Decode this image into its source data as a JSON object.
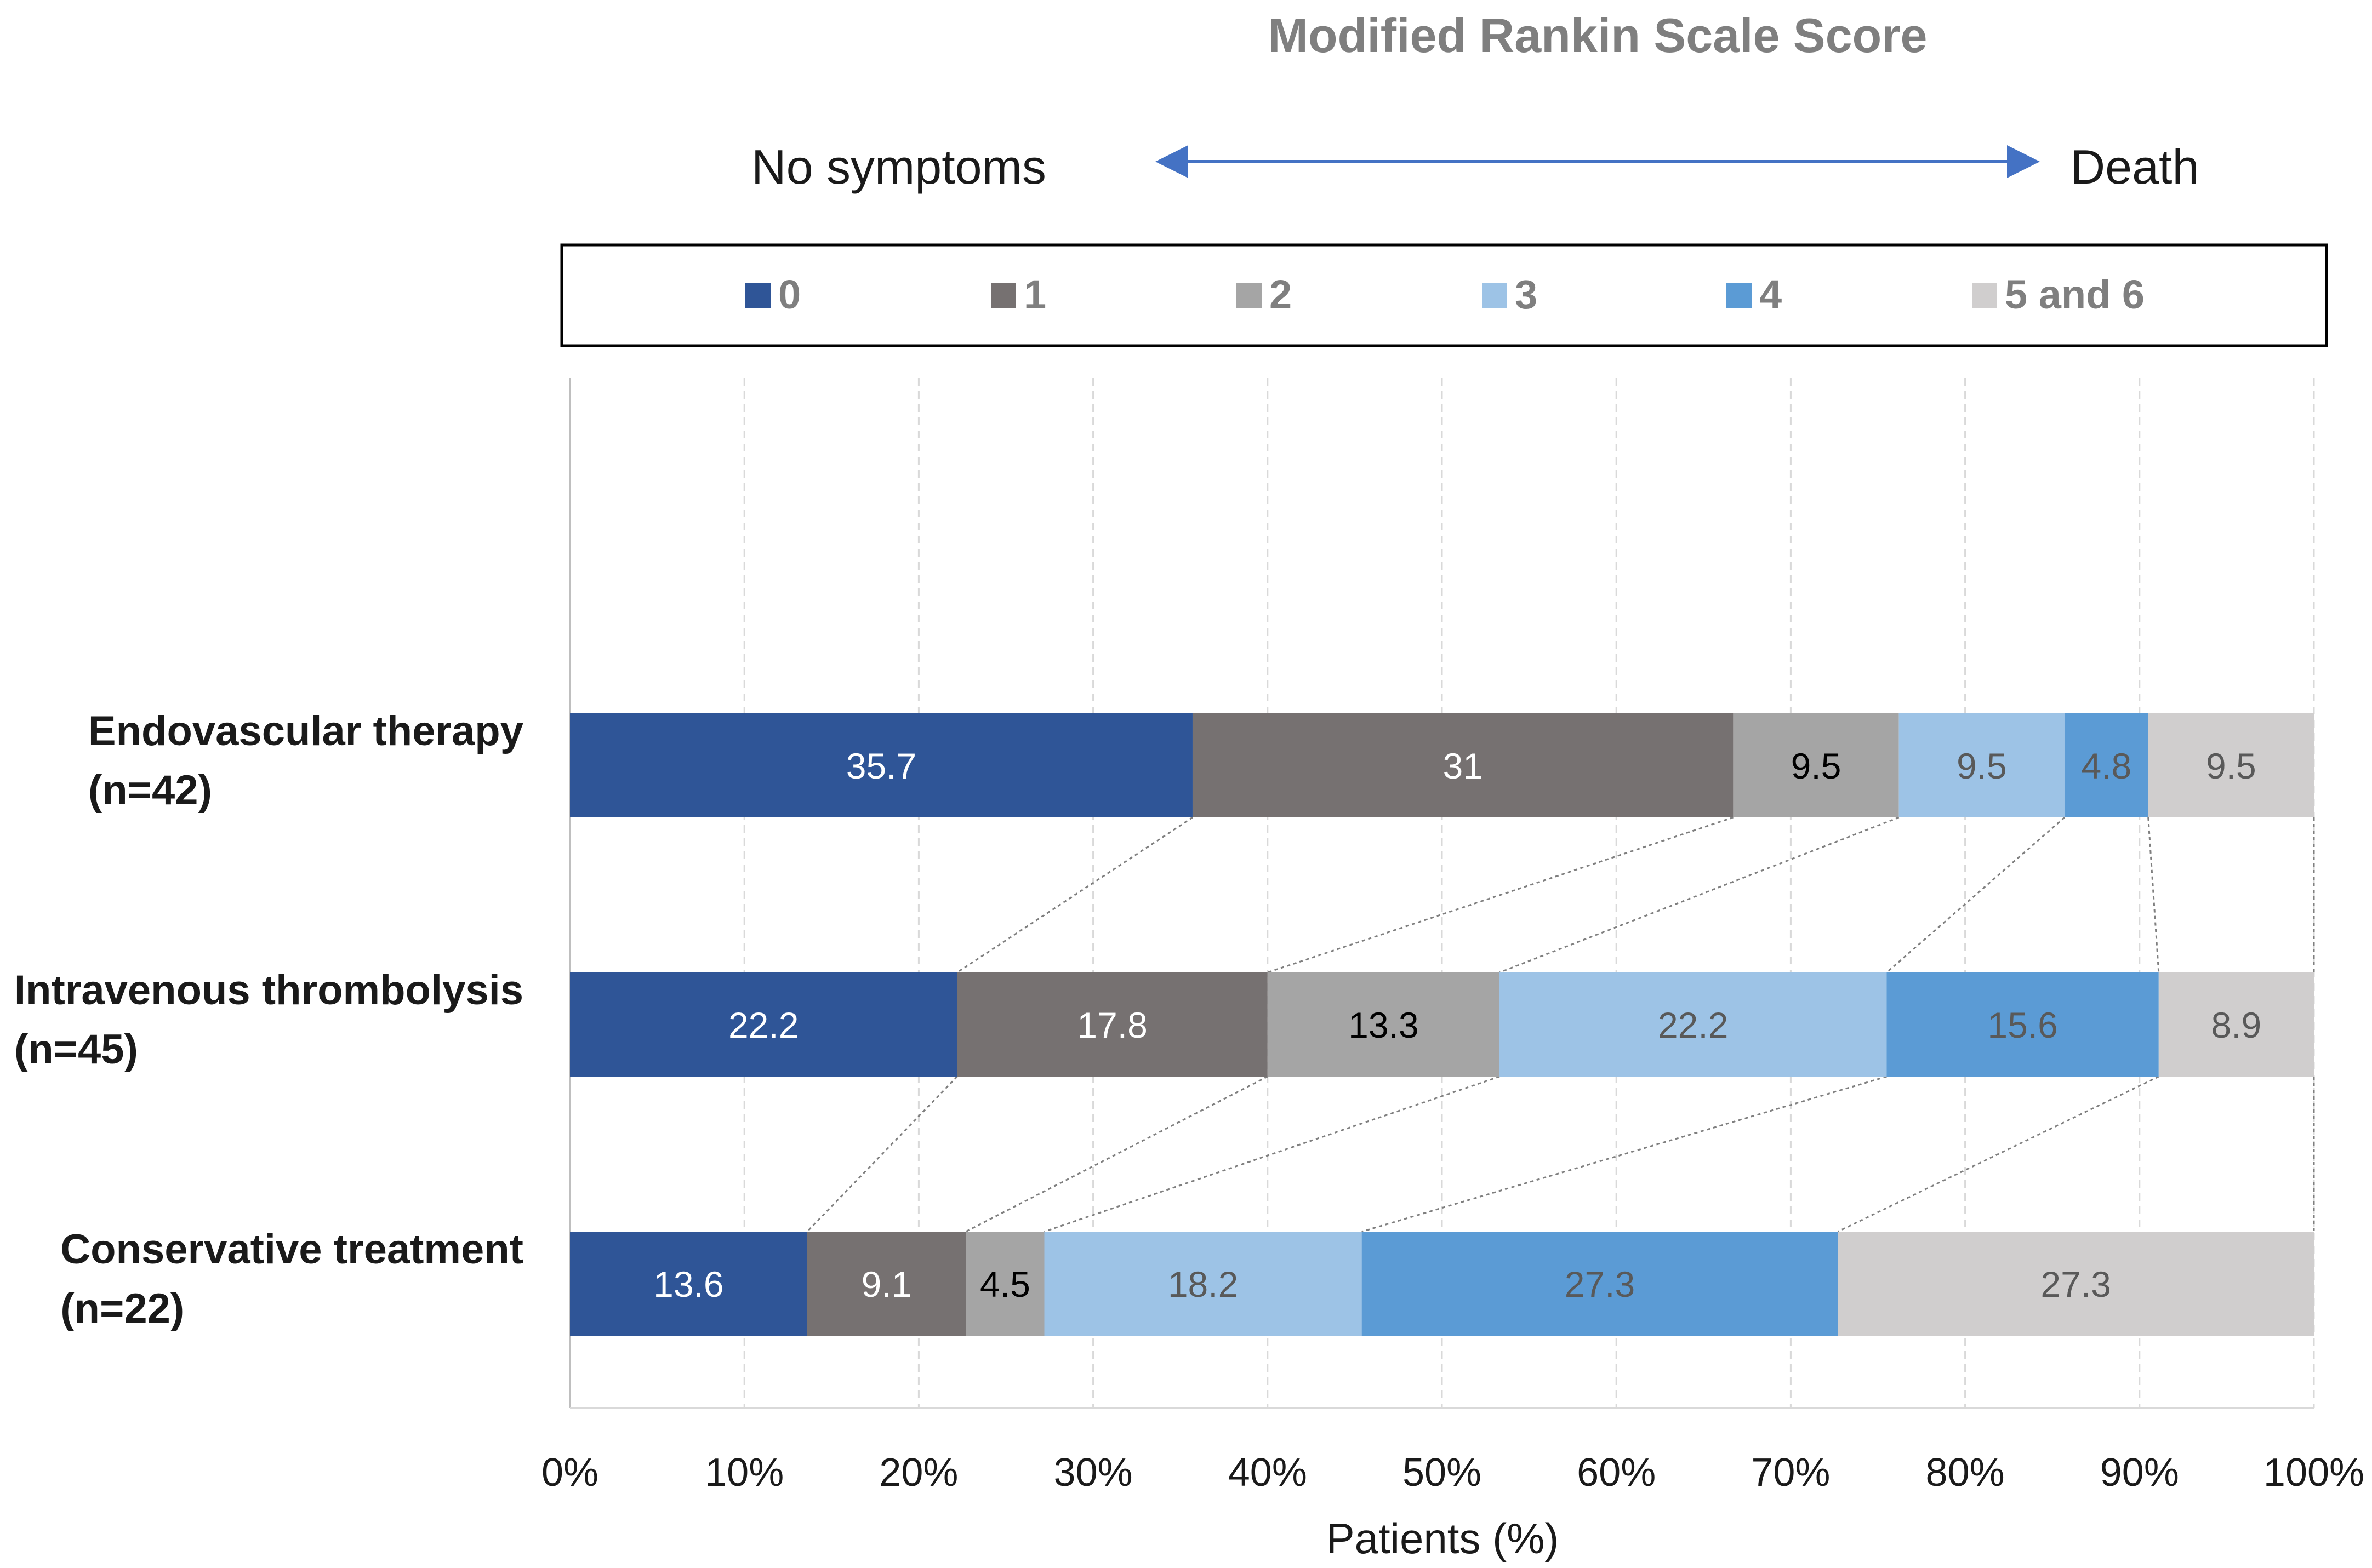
{
  "chart_data": {
    "type": "bar",
    "orientation": "horizontal",
    "stacked": true,
    "title": "Modified Rankin Scale Score",
    "scale_left_label": "No symptoms",
    "scale_right_label": "Death",
    "xlabel": "Patients (%)",
    "ylabel": "",
    "xlim": [
      0,
      100
    ],
    "x_ticks": [
      "0%",
      "10%",
      "20%",
      "30%",
      "40%",
      "50%",
      "60%",
      "70%",
      "80%",
      "90%",
      "100%"
    ],
    "grid": "vertical dashed",
    "legend_position": "top",
    "categories": [
      {
        "line1": "Endovascular therapy",
        "line2": "(n=42)"
      },
      {
        "line1": "Intravenous thrombolysis",
        "line2": "(n=45)"
      },
      {
        "line1": "Conservative treatment",
        "line2": "(n=22)"
      }
    ],
    "series": [
      {
        "name": "0",
        "color": "#2f5597",
        "label_color": "#ffffff",
        "values": [
          35.7,
          22.2,
          13.6
        ]
      },
      {
        "name": "1",
        "color": "#767171",
        "label_color": "#ffffff",
        "values": [
          31,
          17.8,
          9.1
        ]
      },
      {
        "name": "2",
        "color": "#a5a5a5",
        "label_color": "#000000",
        "values": [
          9.5,
          13.3,
          4.5
        ]
      },
      {
        "name": "3",
        "color": "#9dc3e6",
        "label_color": "#595959",
        "values": [
          9.5,
          22.2,
          18.2
        ]
      },
      {
        "name": "4",
        "color": "#5b9bd5",
        "label_color": "#595959",
        "values": [
          4.8,
          15.6,
          27.3
        ]
      },
      {
        "name": "5 and 6",
        "color": "#d0cece",
        "label_color": "#595959",
        "values": [
          9.5,
          8.9,
          27.3
        ]
      }
    ],
    "arrow_color": "#4472c4"
  }
}
